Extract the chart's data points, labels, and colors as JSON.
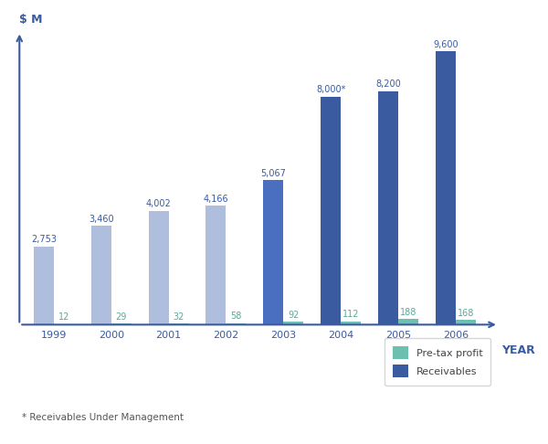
{
  "years": [
    "1999",
    "2000",
    "2001",
    "2002",
    "2003",
    "2004",
    "2005",
    "2006"
  ],
  "pretax_profit": [
    12,
    29,
    32,
    58,
    92,
    112,
    188,
    168
  ],
  "receivables": [
    2753,
    3460,
    4002,
    4166,
    5067,
    8000,
    8200,
    9600
  ],
  "pretax_labels": [
    "12",
    "29",
    "32",
    "58",
    "92",
    "112",
    "188",
    "168"
  ],
  "receivables_labels": [
    "2,753",
    "3,460",
    "4,002",
    "4,166",
    "5,067",
    "8,000*",
    "8,200",
    "9,600"
  ],
  "pretax_color": "#6dbfb0",
  "receivables_color_early": "#b0bedd",
  "receivables_color_2003": "#4a6fc0",
  "receivables_color_late": "#3a5ba0",
  "bar_width": 0.35,
  "xlabel": "YEAR",
  "footnote": "* Receivables Under Management",
  "legend_pretax": "Pre-tax profit",
  "legend_receivables": "Receivables",
  "background_color": "#ffffff",
  "ylim": [
    0,
    10500
  ],
  "text_color": "#3a5ba0",
  "text_color_pretax": "#5aaa99"
}
